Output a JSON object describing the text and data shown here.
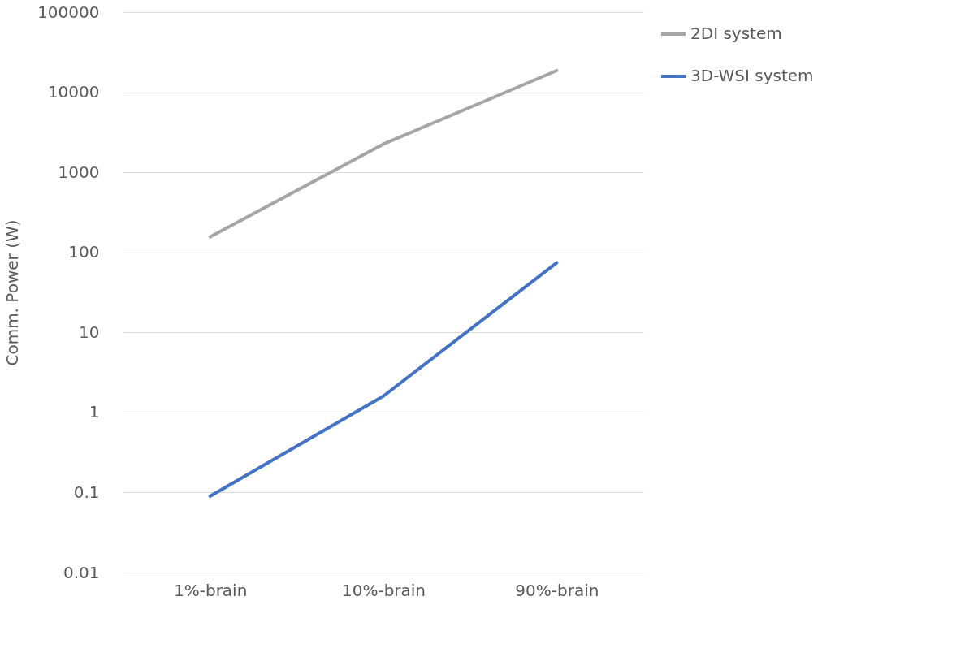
{
  "chart_data": {
    "type": "line",
    "ylabel": "Comm. Power (W)",
    "categories": [
      "1%-brain",
      "10%-brain",
      "90%-brain"
    ],
    "series": [
      {
        "name": "2DI system",
        "color": "#a5a5a5",
        "values": [
          156,
          2250,
          18600
        ]
      },
      {
        "name": "3D-WSI system",
        "color": "#4472c4",
        "values": [
          0.09,
          1.6,
          74
        ]
      }
    ],
    "log": true,
    "ylim": [
      0.01,
      100000
    ],
    "yticks": [
      0.01,
      0.1,
      1,
      10,
      100,
      1000,
      10000,
      100000
    ],
    "grid": "y",
    "legend": "right",
    "marker": "none",
    "line_style": "solid"
  }
}
